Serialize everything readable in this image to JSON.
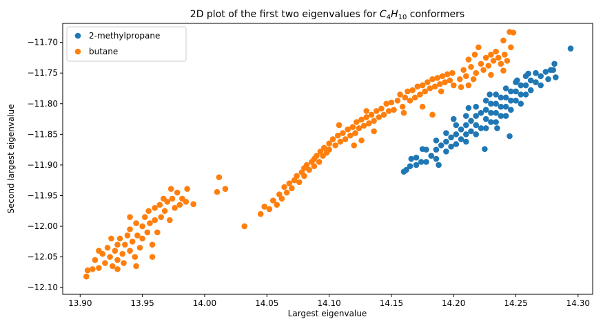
{
  "chart_data": {
    "type": "scatter",
    "title_parts": {
      "prefix": "2D plot of the first two eigenvalues for ",
      "c": "C",
      "c_sub": "4",
      "h": "H",
      "h_sub": "10",
      "suffix": " conformers"
    },
    "xlabel": "Largest eigenvalue",
    "ylabel": "Second largest eigenvalue",
    "xlim": [
      13.886,
      14.3117
    ],
    "ylim": [
      -12.111,
      -11.669
    ],
    "xticks": [
      13.9,
      13.95,
      14.0,
      14.05,
      14.1,
      14.15,
      14.2,
      14.25,
      14.3
    ],
    "xtick_labels": [
      "13.90",
      "13.95",
      "14.00",
      "14.05",
      "14.10",
      "14.15",
      "14.20",
      "14.25",
      "14.30"
    ],
    "yticks": [
      -11.7,
      -11.75,
      -11.8,
      -11.85,
      -11.9,
      -11.95,
      -12.0,
      -12.05,
      -12.1
    ],
    "ytick_labels": [
      "−11.70",
      "−11.75",
      "−11.80",
      "−11.85",
      "−11.90",
      "−11.95",
      "−12.00",
      "−12.05",
      "−12.10"
    ],
    "grid": false,
    "legend_placement": "top-left",
    "series": [
      {
        "name": "2-methylpropane",
        "color": "#1f77b4",
        "points": [
          [
            14.162,
            -11.908
          ],
          [
            14.165,
            -11.902
          ],
          [
            14.17,
            -11.9
          ],
          [
            14.17,
            -11.888
          ],
          [
            14.174,
            -11.895
          ],
          [
            14.178,
            -11.875
          ],
          [
            14.178,
            -11.895
          ],
          [
            14.182,
            -11.885
          ],
          [
            14.186,
            -11.86
          ],
          [
            14.186,
            -11.875
          ],
          [
            14.186,
            -11.89
          ],
          [
            14.19,
            -11.868
          ],
          [
            14.194,
            -11.848
          ],
          [
            14.194,
            -11.862
          ],
          [
            14.194,
            -11.878
          ],
          [
            14.198,
            -11.855
          ],
          [
            14.198,
            -11.87
          ],
          [
            14.202,
            -11.835
          ],
          [
            14.202,
            -11.85
          ],
          [
            14.202,
            -11.866
          ],
          [
            14.206,
            -11.842
          ],
          [
            14.206,
            -11.858
          ],
          [
            14.21,
            -11.82
          ],
          [
            14.21,
            -11.835
          ],
          [
            14.21,
            -11.85
          ],
          [
            14.21,
            -11.862
          ],
          [
            14.214,
            -11.828
          ],
          [
            14.214,
            -11.845
          ],
          [
            14.218,
            -11.805
          ],
          [
            14.218,
            -11.82
          ],
          [
            14.218,
            -11.835
          ],
          [
            14.218,
            -11.85
          ],
          [
            14.222,
            -11.815
          ],
          [
            14.222,
            -11.84
          ],
          [
            14.226,
            -11.795
          ],
          [
            14.226,
            -11.81
          ],
          [
            14.226,
            -11.825
          ],
          [
            14.226,
            -11.84
          ],
          [
            14.23,
            -11.8
          ],
          [
            14.23,
            -11.83
          ],
          [
            14.23,
            -11.815
          ],
          [
            14.234,
            -11.785
          ],
          [
            14.234,
            -11.8
          ],
          [
            14.234,
            -11.815
          ],
          [
            14.234,
            -11.83
          ],
          [
            14.238,
            -11.79
          ],
          [
            14.238,
            -11.805
          ],
          [
            14.238,
            -11.82
          ],
          [
            14.242,
            -11.775
          ],
          [
            14.242,
            -11.79
          ],
          [
            14.242,
            -11.805
          ],
          [
            14.242,
            -11.82
          ],
          [
            14.246,
            -11.78
          ],
          [
            14.246,
            -11.795
          ],
          [
            14.246,
            -11.81
          ],
          [
            14.25,
            -11.765
          ],
          [
            14.25,
            -11.78
          ],
          [
            14.25,
            -11.795
          ],
          [
            14.254,
            -11.77
          ],
          [
            14.254,
            -11.785
          ],
          [
            14.254,
            -11.8
          ],
          [
            14.258,
            -11.755
          ],
          [
            14.258,
            -11.77
          ],
          [
            14.258,
            -11.785
          ],
          [
            14.262,
            -11.762
          ],
          [
            14.262,
            -11.778
          ],
          [
            14.266,
            -11.75
          ],
          [
            14.266,
            -11.765
          ],
          [
            14.27,
            -11.755
          ],
          [
            14.27,
            -11.77
          ],
          [
            14.274,
            -11.748
          ],
          [
            14.276,
            -11.76
          ],
          [
            14.278,
            -11.745
          ],
          [
            14.281,
            -11.735
          ],
          [
            14.282,
            -11.757
          ],
          [
            14.28,
            -11.745
          ],
          [
            14.294,
            -11.71
          ],
          [
            14.245,
            -11.853
          ],
          [
            14.235,
            -11.84
          ],
          [
            14.212,
            -11.807
          ],
          [
            14.251,
            -11.762
          ],
          [
            14.16,
            -11.911
          ],
          [
            14.175,
            -11.874
          ],
          [
            14.2,
            -11.825
          ],
          [
            14.188,
            -11.9
          ],
          [
            14.225,
            -11.874
          ],
          [
            14.229,
            -11.785
          ],
          [
            14.26,
            -11.751
          ],
          [
            14.166,
            -11.89
          ]
        ]
      },
      {
        "name": "butane",
        "color": "#ff7f0e",
        "points": [
          [
            13.905,
            -12.082
          ],
          [
            13.906,
            -12.072
          ],
          [
            13.91,
            -12.07
          ],
          [
            13.912,
            -12.055
          ],
          [
            13.915,
            -12.068
          ],
          [
            13.918,
            -12.045
          ],
          [
            13.92,
            -12.06
          ],
          [
            13.922,
            -12.035
          ],
          [
            13.924,
            -12.05
          ],
          [
            13.926,
            -12.065
          ],
          [
            13.928,
            -12.04
          ],
          [
            13.93,
            -12.03
          ],
          [
            13.93,
            -12.055
          ],
          [
            13.932,
            -12.02
          ],
          [
            13.934,
            -12.045
          ],
          [
            13.935,
            -12.06
          ],
          [
            13.936,
            -12.03
          ],
          [
            13.938,
            -12.015
          ],
          [
            13.94,
            -12.04
          ],
          [
            13.94,
            -12.005
          ],
          [
            13.942,
            -12.025
          ],
          [
            13.944,
            -12.05
          ],
          [
            13.945,
            -11.995
          ],
          [
            13.946,
            -12.015
          ],
          [
            13.948,
            -12.035
          ],
          [
            13.95,
            -12.0
          ],
          [
            13.95,
            -12.02
          ],
          [
            13.952,
            -11.985
          ],
          [
            13.954,
            -12.01
          ],
          [
            13.955,
            -11.975
          ],
          [
            13.956,
            -11.995
          ],
          [
            13.958,
            -12.03
          ],
          [
            13.96,
            -11.97
          ],
          [
            13.96,
            -11.99
          ],
          [
            13.962,
            -12.01
          ],
          [
            13.964,
            -11.965
          ],
          [
            13.965,
            -11.985
          ],
          [
            13.967,
            -11.955
          ],
          [
            13.968,
            -11.975
          ],
          [
            13.97,
            -11.96
          ],
          [
            13.972,
            -11.99
          ],
          [
            13.974,
            -11.955
          ],
          [
            13.976,
            -11.97
          ],
          [
            13.978,
            -11.945
          ],
          [
            13.98,
            -11.965
          ],
          [
            13.982,
            -11.955
          ],
          [
            13.985,
            -11.96
          ],
          [
            13.973,
            -11.939
          ],
          [
            13.986,
            -11.939
          ],
          [
            13.991,
            -11.964
          ],
          [
            14.0116,
            -11.92
          ],
          [
            14.0166,
            -11.939
          ],
          [
            14.01,
            -11.944
          ],
          [
            13.94,
            -11.985
          ],
          [
            13.925,
            -12.02
          ],
          [
            13.915,
            -12.04
          ],
          [
            13.93,
            -12.07
          ],
          [
            13.945,
            -12.065
          ],
          [
            13.958,
            -12.05
          ],
          [
            14.032,
            -12.0
          ],
          [
            14.045,
            -11.98
          ],
          [
            14.048,
            -11.968
          ],
          [
            14.052,
            -11.972
          ],
          [
            14.055,
            -11.958
          ],
          [
            14.058,
            -11.965
          ],
          [
            14.06,
            -11.948
          ],
          [
            14.062,
            -11.955
          ],
          [
            14.064,
            -11.936
          ],
          [
            14.066,
            -11.945
          ],
          [
            14.068,
            -11.93
          ],
          [
            14.07,
            -11.938
          ],
          [
            14.072,
            -11.925
          ],
          [
            14.074,
            -11.918
          ],
          [
            14.076,
            -11.928
          ],
          [
            14.078,
            -11.912
          ],
          [
            14.08,
            -11.905
          ],
          [
            14.08,
            -11.918
          ],
          [
            14.082,
            -11.9
          ],
          [
            14.084,
            -11.908
          ],
          [
            14.086,
            -11.895
          ],
          [
            14.088,
            -11.89
          ],
          [
            14.088,
            -11.902
          ],
          [
            14.09,
            -11.885
          ],
          [
            14.092,
            -11.895
          ],
          [
            14.093,
            -11.878
          ],
          [
            14.095,
            -11.885
          ],
          [
            14.096,
            -11.872
          ],
          [
            14.098,
            -11.88
          ],
          [
            14.1,
            -11.865
          ],
          [
            14.1,
            -11.875
          ],
          [
            14.103,
            -11.858
          ],
          [
            14.105,
            -11.868
          ],
          [
            14.107,
            -11.852
          ],
          [
            14.109,
            -11.862
          ],
          [
            14.111,
            -11.848
          ],
          [
            14.113,
            -11.858
          ],
          [
            14.115,
            -11.842
          ],
          [
            14.117,
            -11.852
          ],
          [
            14.119,
            -11.838
          ],
          [
            14.121,
            -11.848
          ],
          [
            14.122,
            -11.83
          ],
          [
            14.124,
            -11.84
          ],
          [
            14.126,
            -11.826
          ],
          [
            14.128,
            -11.836
          ],
          [
            14.13,
            -11.822
          ],
          [
            14.132,
            -11.832
          ],
          [
            14.134,
            -11.818
          ],
          [
            14.136,
            -11.828
          ],
          [
            14.138,
            -11.812
          ],
          [
            14.14,
            -11.822
          ],
          [
            14.142,
            -11.808
          ],
          [
            14.144,
            -11.818
          ],
          [
            14.146,
            -11.8
          ],
          [
            14.148,
            -11.812
          ],
          [
            14.15,
            -11.798
          ],
          [
            14.152,
            -11.81
          ],
          [
            14.12,
            -11.868
          ],
          [
            14.126,
            -11.86
          ],
          [
            14.136,
            -11.845
          ],
          [
            14.108,
            -11.835
          ],
          [
            14.13,
            -11.812
          ],
          [
            14.155,
            -11.795
          ],
          [
            14.157,
            -11.785
          ],
          [
            14.159,
            -11.805
          ],
          [
            14.161,
            -11.79
          ],
          [
            14.163,
            -11.78
          ],
          [
            14.165,
            -11.795
          ],
          [
            14.167,
            -11.778
          ],
          [
            14.169,
            -11.79
          ],
          [
            14.171,
            -11.772
          ],
          [
            14.173,
            -11.785
          ],
          [
            14.175,
            -11.77
          ],
          [
            14.177,
            -11.78
          ],
          [
            14.179,
            -11.765
          ],
          [
            14.181,
            -11.775
          ],
          [
            14.183,
            -11.76
          ],
          [
            14.185,
            -11.772
          ],
          [
            14.187,
            -11.758
          ],
          [
            14.189,
            -11.768
          ],
          [
            14.191,
            -11.755
          ],
          [
            14.193,
            -11.765
          ],
          [
            14.195,
            -11.752
          ],
          [
            14.197,
            -11.762
          ],
          [
            14.199,
            -11.75
          ],
          [
            14.183,
            -11.818
          ],
          [
            14.175,
            -11.805
          ],
          [
            14.16,
            -11.815
          ],
          [
            14.19,
            -11.78
          ],
          [
            14.2,
            -11.77
          ],
          [
            14.205,
            -11.76
          ],
          [
            14.206,
            -11.773
          ],
          [
            14.208,
            -11.745
          ],
          [
            14.21,
            -11.755
          ],
          [
            14.212,
            -11.77
          ],
          [
            14.214,
            -11.74
          ],
          [
            14.216,
            -11.76
          ],
          [
            14.218,
            -11.75
          ],
          [
            14.22,
            -11.708
          ],
          [
            14.222,
            -11.735
          ],
          [
            14.224,
            -11.745
          ],
          [
            14.226,
            -11.725
          ],
          [
            14.228,
            -11.738
          ],
          [
            14.23,
            -11.72
          ],
          [
            14.23,
            -11.753
          ],
          [
            14.232,
            -11.73
          ],
          [
            14.234,
            -11.715
          ],
          [
            14.236,
            -11.725
          ],
          [
            14.238,
            -11.735
          ],
          [
            14.24,
            -11.697
          ],
          [
            14.24,
            -11.746
          ],
          [
            14.241,
            -11.72
          ],
          [
            14.243,
            -11.73
          ],
          [
            14.246,
            -11.708
          ],
          [
            14.245,
            -11.683
          ],
          [
            14.248,
            -11.684
          ],
          [
            14.212,
            -11.728
          ],
          [
            14.217,
            -11.72
          ]
        ]
      }
    ]
  }
}
